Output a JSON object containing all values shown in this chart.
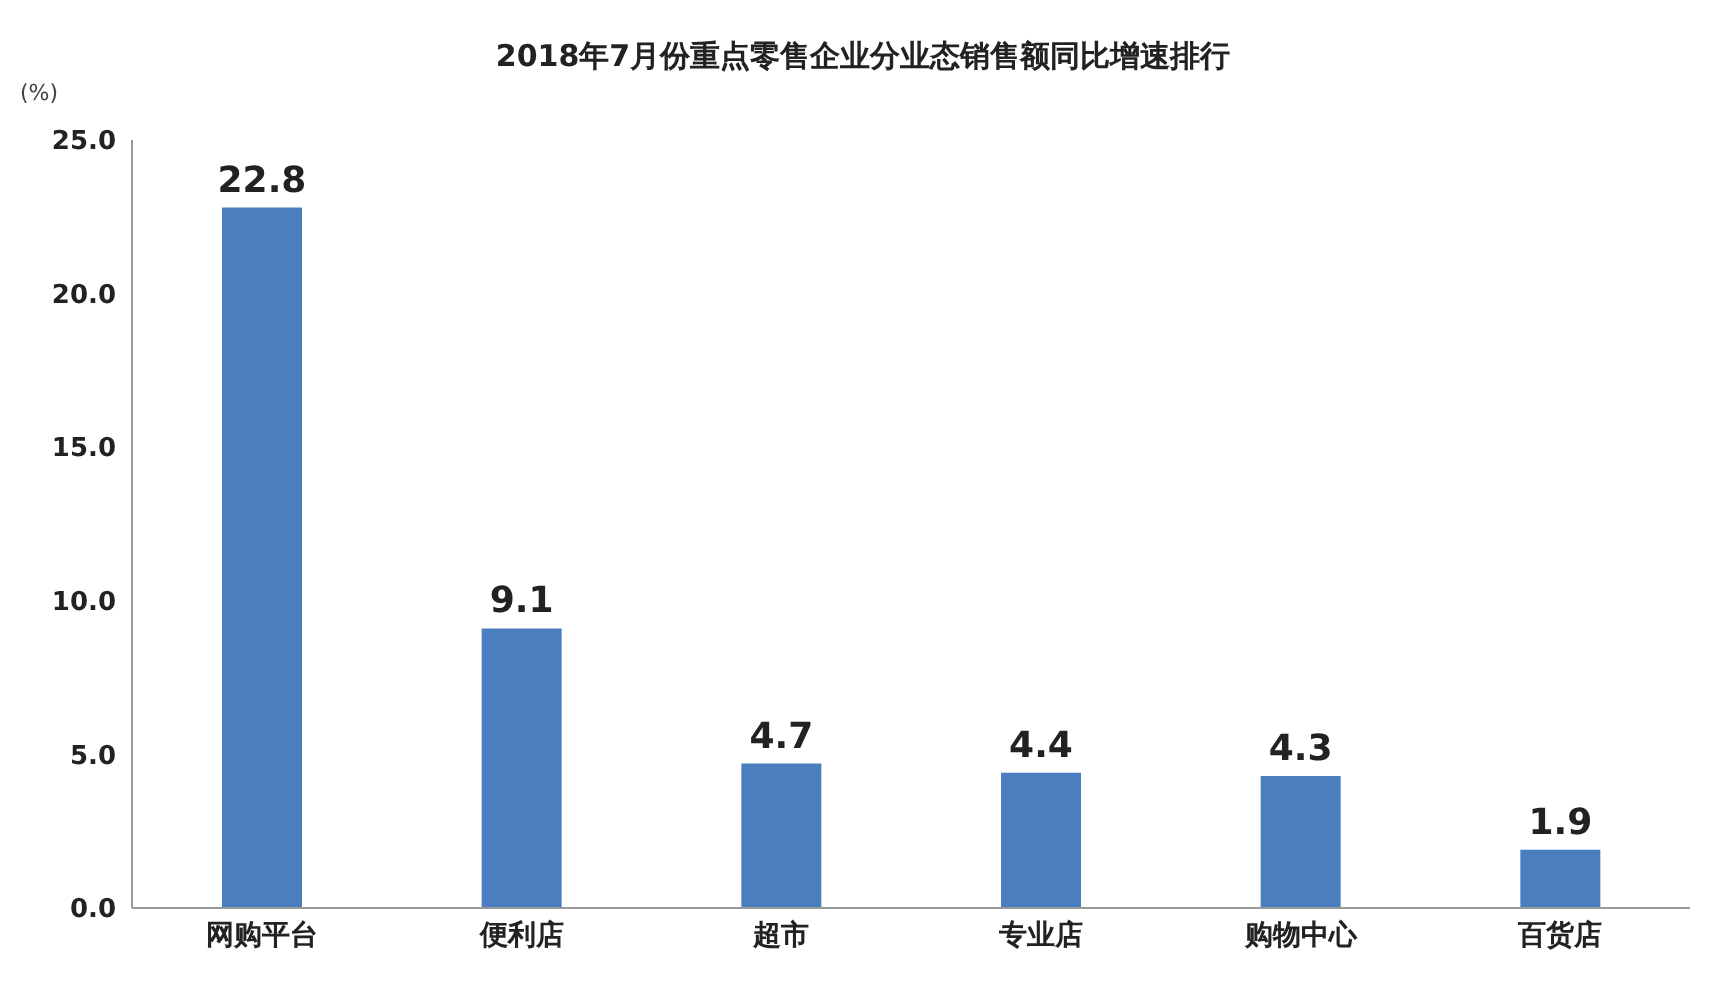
{
  "chart_data": {
    "type": "bar",
    "title": "2018年7月份重点零售企业分业态销售额同比增速排行",
    "ylabel": "(%)",
    "categories": [
      "网购平台",
      "便利店",
      "超市",
      "专业店",
      "购物中心",
      "百货店"
    ],
    "values": [
      22.8,
      9.1,
      4.7,
      4.4,
      4.3,
      1.9
    ],
    "color": "#4a7ebf",
    "ylim": [
      0,
      25
    ],
    "yticks": [
      {
        "value": 0,
        "label": "0.0"
      },
      {
        "value": 5,
        "label": "5.0"
      },
      {
        "value": 10,
        "label": "10.0"
      },
      {
        "value": 15,
        "label": "15.0"
      },
      {
        "value": 20,
        "label": "20.0"
      },
      {
        "value": 25,
        "label": "25.0"
      }
    ],
    "grid": false,
    "data_labels": true
  }
}
